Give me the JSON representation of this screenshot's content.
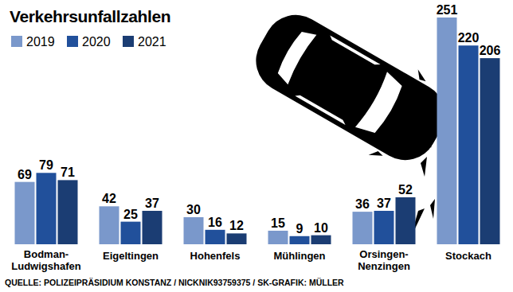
{
  "chart_data": {
    "type": "bar",
    "title": "Verkehrsunfallzahlen",
    "source": "QUELLE: POLIZEIPRÄSIDIUM KONSTANZ / NICKNIK93759375 / SK-GRAFIK: MÜLLER",
    "categories": [
      "Bodman-Ludwigshafen",
      "Eigeltingen",
      "Hohenfels",
      "Mühlingen",
      "Orsingen-Nenzingen",
      "Stockach"
    ],
    "series": [
      {
        "name": "2019",
        "color": "#7a98cb",
        "values": [
          69,
          42,
          30,
          15,
          36,
          251
        ]
      },
      {
        "name": "2020",
        "color": "#21509b",
        "values": [
          79,
          25,
          16,
          9,
          37,
          220
        ]
      },
      {
        "name": "2021",
        "color": "#1b3d73",
        "values": [
          71,
          37,
          12,
          10,
          52,
          206
        ]
      }
    ],
    "ylim": [
      0,
      251
    ],
    "legend": "top-left",
    "data_labels": true,
    "tick_labels": "x"
  }
}
